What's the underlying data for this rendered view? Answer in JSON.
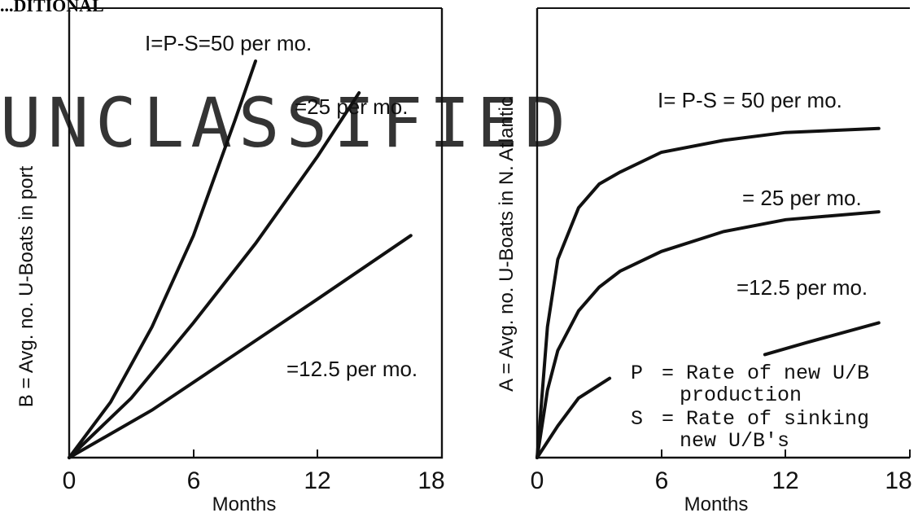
{
  "header": {
    "top_left_text": "...DITIONAL"
  },
  "watermark": {
    "text": "UNCLASSIFIED"
  },
  "chart_data": [
    {
      "type": "line",
      "xlabel": "Months",
      "ylabel": "B = Avg. no. U-Boats in port",
      "xticks": [
        "0",
        "6",
        "12",
        "18"
      ],
      "xlim": [
        0,
        18
      ],
      "series": [
        {
          "name": "I=P-S=50 per mo.",
          "x": [
            0,
            2,
            4,
            6,
            8,
            9
          ],
          "y": [
            0,
            0.14,
            0.33,
            0.56,
            0.85,
            1.0
          ]
        },
        {
          "name": "=25 per mo.",
          "x": [
            0,
            3,
            6,
            9,
            12,
            14
          ],
          "y": [
            0,
            0.15,
            0.34,
            0.54,
            0.76,
            0.92
          ]
        },
        {
          "name": "=12.5 per mo.",
          "x": [
            0,
            4,
            8,
            12,
            16.5
          ],
          "y": [
            0,
            0.12,
            0.26,
            0.4,
            0.56
          ]
        }
      ]
    },
    {
      "type": "line",
      "xlabel": "Months",
      "ylabel": "A = Avg. no. U-Boats in N. Atlantic",
      "xticks": [
        "0",
        "6",
        "12",
        "18"
      ],
      "xlim": [
        0,
        18
      ],
      "series": [
        {
          "name": "I= P-S = 50 per mo.",
          "x": [
            0,
            0.5,
            1,
            2,
            3,
            4,
            6,
            9,
            12,
            16.5
          ],
          "y": [
            0,
            0.33,
            0.5,
            0.63,
            0.69,
            0.72,
            0.77,
            0.8,
            0.82,
            0.83
          ]
        },
        {
          "name": "= 25 per mo.",
          "x": [
            0,
            0.5,
            1,
            2,
            3,
            4,
            6,
            9,
            12,
            16.5
          ],
          "y": [
            0,
            0.17,
            0.27,
            0.37,
            0.43,
            0.47,
            0.52,
            0.57,
            0.6,
            0.62
          ]
        },
        {
          "name": "=12.5 per mo.",
          "x": [
            0,
            1,
            2,
            3.5
          ],
          "y": [
            0,
            0.08,
            0.15,
            0.2
          ],
          "x2": [
            11,
            13,
            16.5
          ],
          "y2": [
            0.26,
            0.29,
            0.34
          ]
        }
      ],
      "legend": [
        {
          "symbol": "P",
          "text": "= Rate of new U/B"
        },
        {
          "symbol": "",
          "text": "production"
        },
        {
          "symbol": "S",
          "text": "= Rate of sinking"
        },
        {
          "symbol": "",
          "text": "new U/B's"
        }
      ]
    }
  ]
}
